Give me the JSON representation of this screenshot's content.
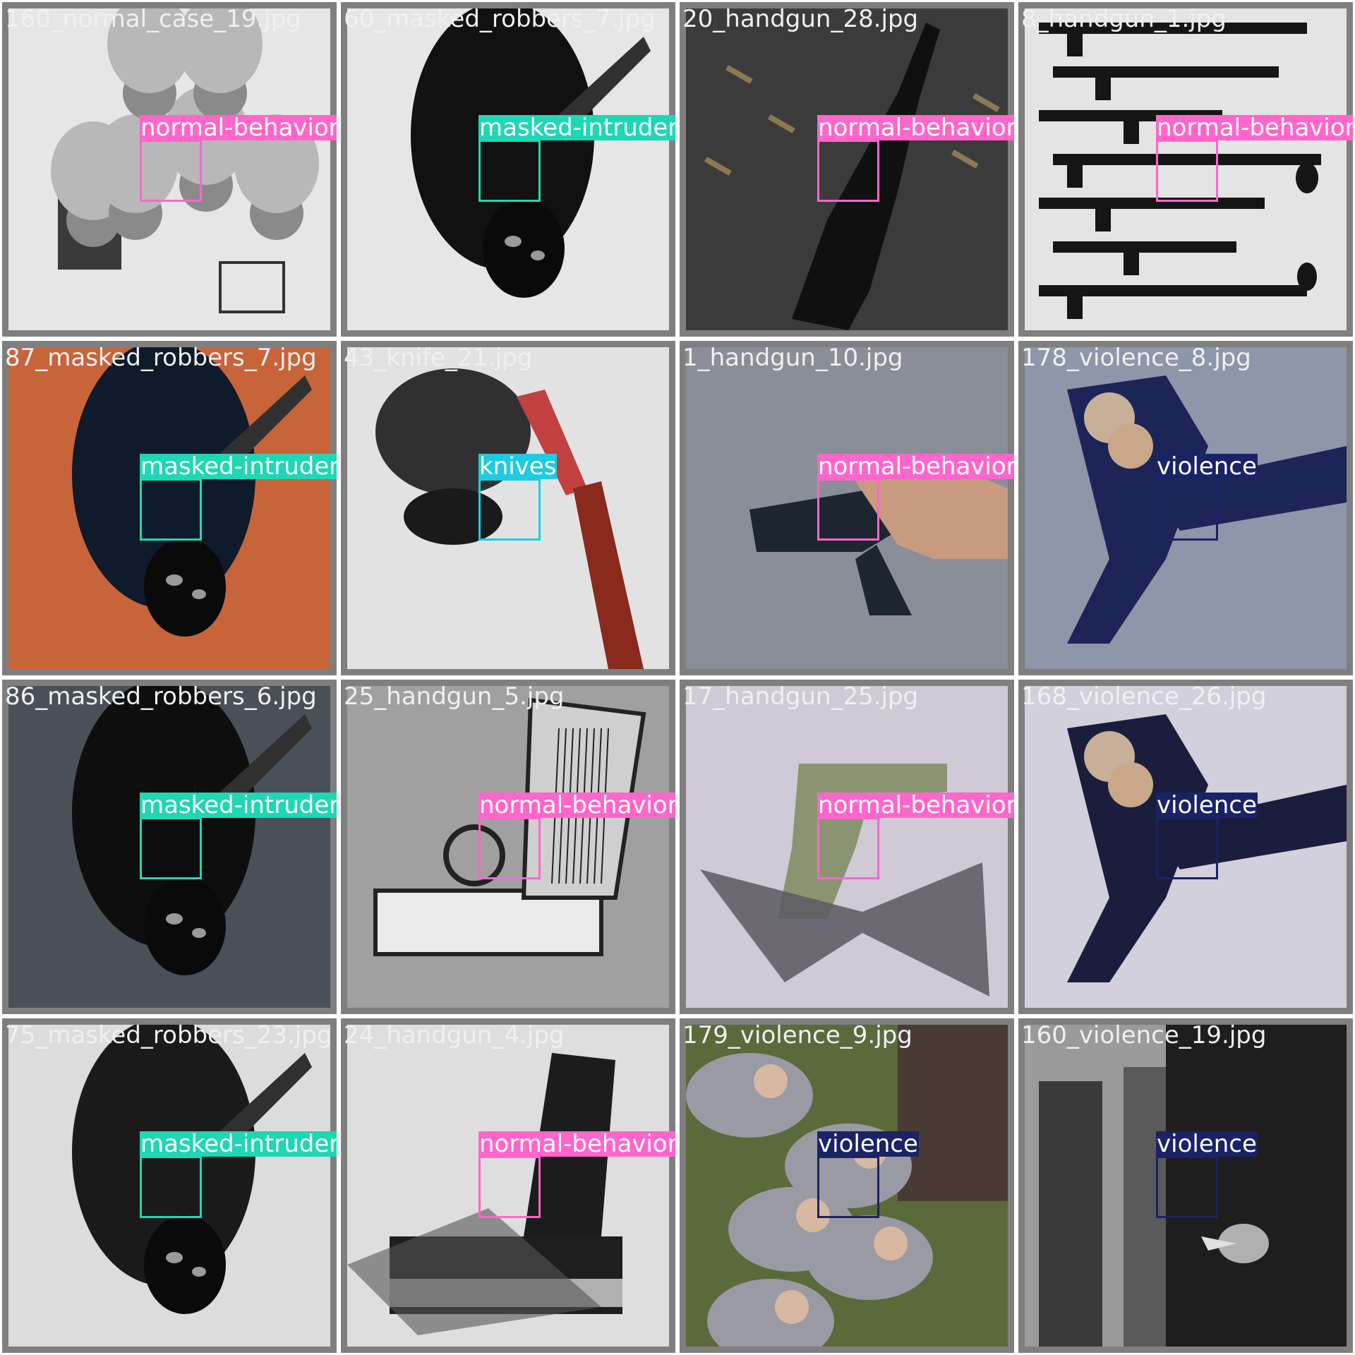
{
  "tiles": [
    {
      "file": "160_normal_case_19.jpg",
      "label": "normal-behavior",
      "color": "#ff66cc",
      "bg": [
        "#d8d8d8",
        "#6a6a6a"
      ],
      "motif": "people-group"
    },
    {
      "file": "60_masked_robbers_7.jpg",
      "label": "masked-intruders",
      "color": "#1ed7b4",
      "bg": [
        "#e6e6e6",
        "#111111"
      ],
      "motif": "masked-figure"
    },
    {
      "file": "20_handgun_28.jpg",
      "label": "normal-behavior",
      "color": "#ff66cc",
      "bg": [
        "#5a5a5a",
        "#1c1c1c"
      ],
      "motif": "rifle"
    },
    {
      "file": "8_handgun_1.jpg",
      "label": "normal-behavior",
      "color": "#ff66cc",
      "bg": [
        "#e4e4e4",
        "#151515"
      ],
      "motif": "weapon-silhouettes"
    },
    {
      "file": "87_masked_robbers_7.jpg",
      "label": "masked-intruders",
      "color": "#1ed7b4",
      "bg": [
        "#c8643a",
        "#0f1a2a"
      ],
      "motif": "masked-figure"
    },
    {
      "file": "43_knife_21.jpg",
      "label": "knives",
      "color": "#1ecbe1",
      "bg": [
        "#e2e2e2",
        "#8a2a1c"
      ],
      "motif": "knife"
    },
    {
      "file": "1_handgun_10.jpg",
      "label": "normal-behavior",
      "color": "#ff66cc",
      "bg": [
        "#8a8e98",
        "#1c2530"
      ],
      "motif": "handgun"
    },
    {
      "file": "178_violence_8.jpg",
      "label": "violence",
      "color": "#1a2366",
      "bg": [
        "#8e96aa",
        "#1c2458"
      ],
      "motif": "fight"
    },
    {
      "file": "86_masked_robbers_6.jpg",
      "label": "masked-intruders",
      "color": "#1ed7b4",
      "bg": [
        "#4a5058",
        "#0e0e0e"
      ],
      "motif": "masked-figure"
    },
    {
      "file": "25_handgun_5.jpg",
      "label": "normal-behavior",
      "color": "#ff66cc",
      "bg": [
        "#a0a0a0",
        "#222222"
      ],
      "motif": "pistol-drawing"
    },
    {
      "file": "17_handgun_25.jpg",
      "label": "normal-behavior",
      "color": "#ff66cc",
      "bg": [
        "#cfcad6",
        "#3a3a3a"
      ],
      "motif": "revolver"
    },
    {
      "file": "168_violence_26.jpg",
      "label": "violence",
      "color": "#1a2366",
      "bg": [
        "#d2d0dc",
        "#1a1e3c"
      ],
      "motif": "fight"
    },
    {
      "file": "75_masked_robbers_23.jpg",
      "label": "masked-intruders",
      "color": "#1ed7b4",
      "bg": [
        "#dcdcdc",
        "#1a1a1a"
      ],
      "motif": "masked-figure"
    },
    {
      "file": "24_handgun_4.jpg",
      "label": "normal-behavior",
      "color": "#ff66cc",
      "bg": [
        "#dedede",
        "#1c1c1c"
      ],
      "motif": "pistol-black"
    },
    {
      "file": "179_violence_9.jpg",
      "label": "violence",
      "color": "#1a2366",
      "bg": [
        "#5a6a3a",
        "#9a9aa4"
      ],
      "motif": "crowd"
    },
    {
      "file": "160_violence_19.jpg",
      "label": "violence",
      "color": "#1a2366",
      "bg": [
        "#9a9a9a",
        "#1e1e1e"
      ],
      "motif": "knife-behind-back"
    }
  ]
}
